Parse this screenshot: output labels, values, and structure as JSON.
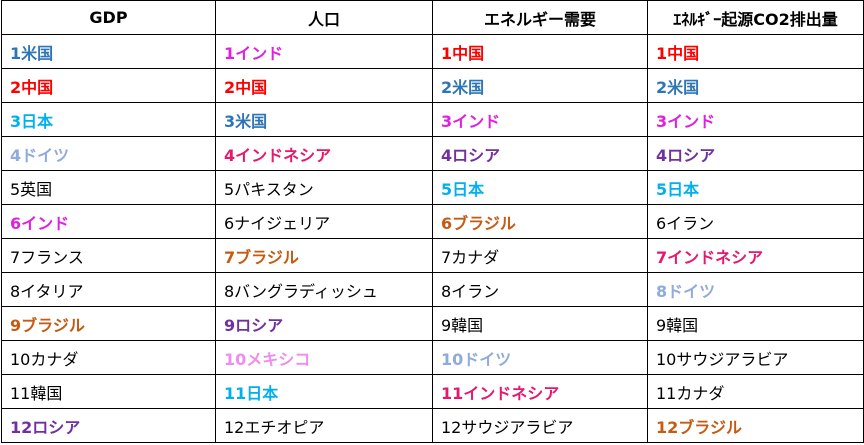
{
  "headers": [
    "GDP",
    "人口",
    "エネルギー需要",
    "ｴﾈﾙｷﾞｰ起源CO2排出量"
  ],
  "rows": [
    [
      {
        "t": "1米国",
        "c": "#2e75b6",
        "b": true
      },
      {
        "t": "1インド",
        "c": "#e020e0",
        "b": true
      },
      {
        "t": "1中国",
        "c": "#ff0000",
        "b": true
      },
      {
        "t": "1中国",
        "c": "#ff0000",
        "b": true
      }
    ],
    [
      {
        "t": "2中国",
        "c": "#ff0000",
        "b": true
      },
      {
        "t": "2中国",
        "c": "#ff0000",
        "b": true
      },
      {
        "t": "2米国",
        "c": "#2e75b6",
        "b": true
      },
      {
        "t": "2米国",
        "c": "#2e75b6",
        "b": true
      }
    ],
    [
      {
        "t": "3日本",
        "c": "#00b0f0",
        "b": true
      },
      {
        "t": "3米国",
        "c": "#2e75b6",
        "b": true
      },
      {
        "t": "3インド",
        "c": "#e020e0",
        "b": true
      },
      {
        "t": "3インド",
        "c": "#e020e0",
        "b": true
      }
    ],
    [
      {
        "t": "4ドイツ",
        "c": "#8faadc",
        "b": true
      },
      {
        "t": "4インドネシア",
        "c": "#e8176e",
        "b": true
      },
      {
        "t": "4ロシア",
        "c": "#7030a0",
        "b": true
      },
      {
        "t": "4ロシア",
        "c": "#7030a0",
        "b": true
      }
    ],
    [
      {
        "t": "5英国",
        "c": "#000000",
        "b": false
      },
      {
        "t": "5パキスタン",
        "c": "#000000",
        "b": false
      },
      {
        "t": "5日本",
        "c": "#00b0f0",
        "b": true
      },
      {
        "t": "5日本",
        "c": "#00b0f0",
        "b": true
      }
    ],
    [
      {
        "t": "6インド",
        "c": "#e020e0",
        "b": true
      },
      {
        "t": "6ナイジェリア",
        "c": "#000000",
        "b": false
      },
      {
        "t": "6ブラジル",
        "c": "#c55a11",
        "b": true
      },
      {
        "t": "6イラン",
        "c": "#000000",
        "b": false
      }
    ],
    [
      {
        "t": "7フランス",
        "c": "#000000",
        "b": false
      },
      {
        "t": "7ブラジル",
        "c": "#c55a11",
        "b": true
      },
      {
        "t": "7カナダ",
        "c": "#000000",
        "b": false
      },
      {
        "t": "7インドネシア",
        "c": "#e8176e",
        "b": true
      }
    ],
    [
      {
        "t": "8イタリア",
        "c": "#000000",
        "b": false
      },
      {
        "t": "8バングラディッシュ",
        "c": "#000000",
        "b": false
      },
      {
        "t": "8イラン",
        "c": "#000000",
        "b": false
      },
      {
        "t": "8ドイツ",
        "c": "#8faadc",
        "b": true
      }
    ],
    [
      {
        "t": "9ブラジル",
        "c": "#c55a11",
        "b": true
      },
      {
        "t": "9ロシア",
        "c": "#7030a0",
        "b": true
      },
      {
        "t": "9韓国",
        "c": "#000000",
        "b": false
      },
      {
        "t": "9韓国",
        "c": "#000000",
        "b": false
      }
    ],
    [
      {
        "t": "10カナダ",
        "c": "#000000",
        "b": false
      },
      {
        "t": "10メキシコ",
        "c": "#f08cf0",
        "b": true
      },
      {
        "t": "10ドイツ",
        "c": "#8faadc",
        "b": true
      },
      {
        "t": "10サウジアラビア",
        "c": "#000000",
        "b": false
      }
    ],
    [
      {
        "t": "11韓国",
        "c": "#000000",
        "b": false
      },
      {
        "t": "11日本",
        "c": "#00b0f0",
        "b": true
      },
      {
        "t": "11インドネシア",
        "c": "#e8176e",
        "b": true
      },
      {
        "t": "11カナダ",
        "c": "#000000",
        "b": false
      }
    ],
    [
      {
        "t": "12ロシア",
        "c": "#7030a0",
        "b": true
      },
      {
        "t": "12エチオピア",
        "c": "#000000",
        "b": false
      },
      {
        "t": "12サウジアラビア",
        "c": "#000000",
        "b": false
      },
      {
        "t": "12ブラジル",
        "c": "#c55a11",
        "b": true
      }
    ]
  ]
}
